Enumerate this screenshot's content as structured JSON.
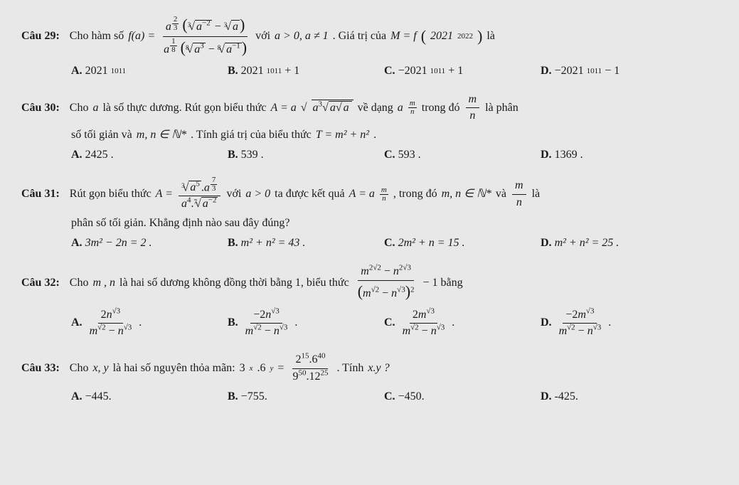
{
  "q29": {
    "label": "Câu 29:",
    "pre": "Cho hàm số ",
    "fa": "f(a) = ",
    "mid1": " với ",
    "cond": "a > 0, a ≠ 1",
    "mid2": ". Giá trị của ",
    "M": "M = f",
    "arg": "2021",
    "argExp": "2022",
    "post": " là",
    "optA": "A.",
    "vA": "2021",
    "eA": "1011",
    "optB": "B.",
    "vB": "2021",
    "eB": "1011",
    "tB": " + 1",
    "optC": "C.",
    "vC": "−2021",
    "eC": "1011",
    "tC": " + 1",
    "optD": "D.",
    "vD": "−2021",
    "eD": "1011",
    "tD": " − 1",
    "numRoot1Idx": "3",
    "numRoot1Body": "a",
    "numRoot1Exp": "−2",
    "numRoot2Idx": "3",
    "numRoot2Body": "a",
    "denRoot1Idx": "8",
    "denRoot1Body": "a",
    "denRoot1Exp": "3",
    "denRoot2Idx": "8",
    "denRoot2Body": "a",
    "denRoot2Exp": "−1",
    "outerNumExpN": "2",
    "outerNumExpD": "3",
    "outerDenExpN": "1",
    "outerDenExpD": "8"
  },
  "q30": {
    "label": "Câu 30:",
    "t1": "Cho ",
    "a": "a",
    "t2": " là số thực dương. Rút gọn biểu thức ",
    "Aeq": "A = a",
    "inner1": "a",
    "inner1e": "3",
    "inner2": "a",
    "inner3": "a",
    "t3": " về dạng ",
    "form": "a",
    "mn_m": "m",
    "mn_n": "n",
    "t4": " trong đó ",
    "t5": " là phân",
    "line2a": "số tối giản và ",
    "line2b": "m, n ∈ ℕ*",
    "line2c": ". Tính giá trị của biểu thức ",
    "Teq": "T = m² + n²",
    "dot": ".",
    "optA": "A.",
    "vA": "2425 .",
    "optB": "B.",
    "vB": "539 .",
    "optC": "C.",
    "vC": "593 .",
    "optD": "D.",
    "vD": "1369 ."
  },
  "q31": {
    "label": "Câu 31:",
    "t1": "Rút gọn biểu thức ",
    "Aeq": "A = ",
    "t2": " với ",
    "cond": "a > 0",
    "t3": " ta được kết quả ",
    "res": "A = a",
    "mn_m": "m",
    "mn_n": "n",
    "t4": " , trong đó ",
    "mn": "m, n ∈ ℕ*",
    "t5": " và ",
    "t6": " là",
    "line2": "phân số tối giản. Khẳng định nào sau đây đúng?",
    "numRootIdx": "3",
    "numRootBody": "a",
    "numRootExp": "5",
    "numFac": "a",
    "numFacExpN": "7",
    "numFacExpD": "3",
    "denFac": "a",
    "denFacExp": "4",
    "denRootIdx": "7",
    "denRootBody": "a",
    "denRootExp": "−2",
    "optA": "A.",
    "vA": "3m² − 2n = 2 .",
    "optB": "B.",
    "vB": "m² + n² = 43 .",
    "optC": "C.",
    "vC": "2m² + n = 15 .",
    "optD": "D.",
    "vD": "m² + n² = 25 ."
  },
  "q32": {
    "label": "Câu 32:",
    "t1": "Cho ",
    "mn": "m , n",
    "t2": " là hai số dương không đồng thời bằng 1, biểu thức ",
    "numL": "m",
    "numLe": "2√2",
    "numR": "n",
    "numRe": "2√3",
    "denL": "m",
    "denLe": "√2",
    "denR": "n",
    "denRe": "√3",
    "denExp": "2",
    "tail": " − 1 bằng",
    "optA": "A.",
    "AnumC": "2",
    "Anum": "n",
    "AnumE": "√3",
    "AdenL": "m",
    "AdenLe": "√2",
    "AdenR": "n",
    "AdenRe": "√3",
    "optB": "B.",
    "BnumC": "−2",
    "Bnum": "n",
    "BnumE": "√3",
    "BdenL": "m",
    "BdenLe": "√2",
    "BdenR": "n",
    "BdenRe": "√3",
    "optC": "C.",
    "CnumC": "2",
    "Cnum": "m",
    "CnumE": "√3",
    "CdenL": "m",
    "CdenLe": "√2",
    "CdenR": "n",
    "CdenRe": "√3",
    "optD": "D.",
    "DnumC": "−2",
    "Dnum": "m",
    "DnumE": "√3",
    "DdenL": "m",
    "DdenLe": "√2",
    "DdenR": "n",
    "DdenRe": "√3",
    "dot": " ."
  },
  "q33": {
    "label": "Câu 33:",
    "t1": "Cho ",
    "xy": "x, y",
    "t2": " là hai số nguyên thỏa mãn: ",
    "lhs": "3",
    "lhsE": "x",
    "lhs2": ".6",
    "lhs2E": "y",
    "eq": " = ",
    "numL": "2",
    "numLe": "15",
    "numR": ".6",
    "numRe": "40",
    "denL": "9",
    "denLe": "50",
    "denR": ".12",
    "denRe": "25",
    "t3": ". Tính ",
    "ask": "x.y ?",
    "optA": "A.",
    "vA": "−445.",
    "optB": "B.",
    "vB": "−755.",
    "optC": "C.",
    "vC": "−450.",
    "optD": "D.",
    "vD": "-425."
  }
}
